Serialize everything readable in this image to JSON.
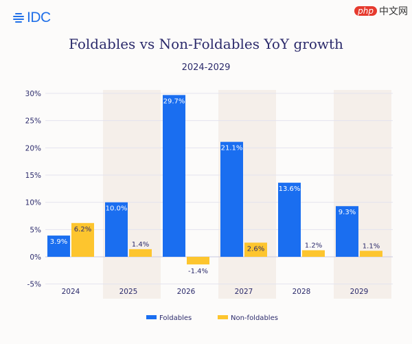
{
  "brand": {
    "logo_text": "IDC",
    "watermark": "php中文网"
  },
  "chart_data": {
    "type": "bar",
    "title": "Foldables vs Non-Foldables YoY growth",
    "subtitle": "2024-2029",
    "categories": [
      "2024",
      "2025",
      "2026",
      "2027",
      "2028",
      "2029"
    ],
    "series": [
      {
        "name": "Foldables",
        "color": "#1a6ef0",
        "values": [
          3.9,
          10.0,
          29.7,
          21.1,
          13.6,
          9.3
        ],
        "labels": [
          "3.9%",
          "10.0%",
          "29.7%",
          "21.1%",
          "13.6%",
          "9.3%"
        ]
      },
      {
        "name": "Non-foldables",
        "color": "#fdc52e",
        "values": [
          6.2,
          1.4,
          -1.4,
          2.6,
          1.2,
          1.1
        ],
        "labels": [
          "6.2%",
          "1.4%",
          "-1.4%",
          "2.6%",
          "1.2%",
          "1.1%"
        ]
      }
    ],
    "ylim": [
      -5,
      30
    ],
    "yticks": [
      30,
      25,
      20,
      15,
      10,
      5,
      0,
      -5
    ],
    "ytick_labels": [
      "30%",
      "25%",
      "20%",
      "15%",
      "10%",
      "5%",
      "0%",
      "-5%"
    ],
    "grid": true,
    "shaded_categories": [
      "2025",
      "2027",
      "2029"
    ],
    "legend_position": "bottom"
  }
}
